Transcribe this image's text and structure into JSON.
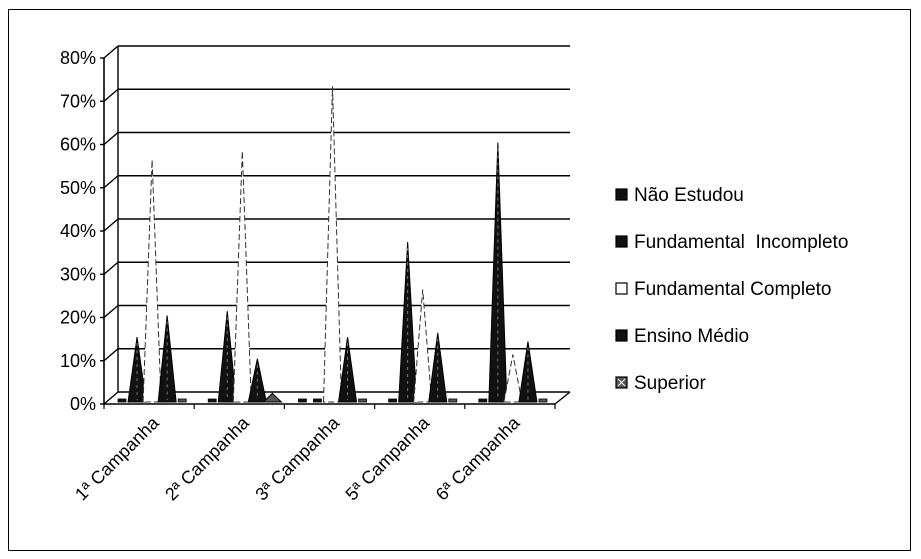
{
  "chart_data": {
    "type": "area",
    "style": "3d-cone-peaks",
    "categories": [
      "1ª Campanha",
      "2ª Campanha",
      "3ª Campanha",
      "5ª Campanha",
      "6ª Campanha"
    ],
    "series": [
      {
        "name": "Não Estudou",
        "values": [
          0,
          0,
          0,
          0,
          0
        ],
        "color": "#111111"
      },
      {
        "name": "Fundamental  Incompleto",
        "values": [
          15,
          21,
          0,
          37,
          60
        ],
        "color": "#111111"
      },
      {
        "name": "Fundamental Completo",
        "values": [
          56,
          58,
          73,
          26,
          11
        ],
        "color": "#ffffff"
      },
      {
        "name": "Ensino Médio",
        "values": [
          20,
          10,
          15,
          16,
          14
        ],
        "color": "#111111"
      },
      {
        "name": "Superior",
        "values": [
          0,
          2,
          0,
          0,
          0
        ],
        "color": "#555555"
      }
    ],
    "y_ticks": [
      "0%",
      "10%",
      "20%",
      "30%",
      "40%",
      "50%",
      "60%",
      "70%",
      "80%"
    ],
    "ylim": [
      0,
      80
    ],
    "y_unit": "%",
    "grid": true,
    "legend_position": "right"
  }
}
